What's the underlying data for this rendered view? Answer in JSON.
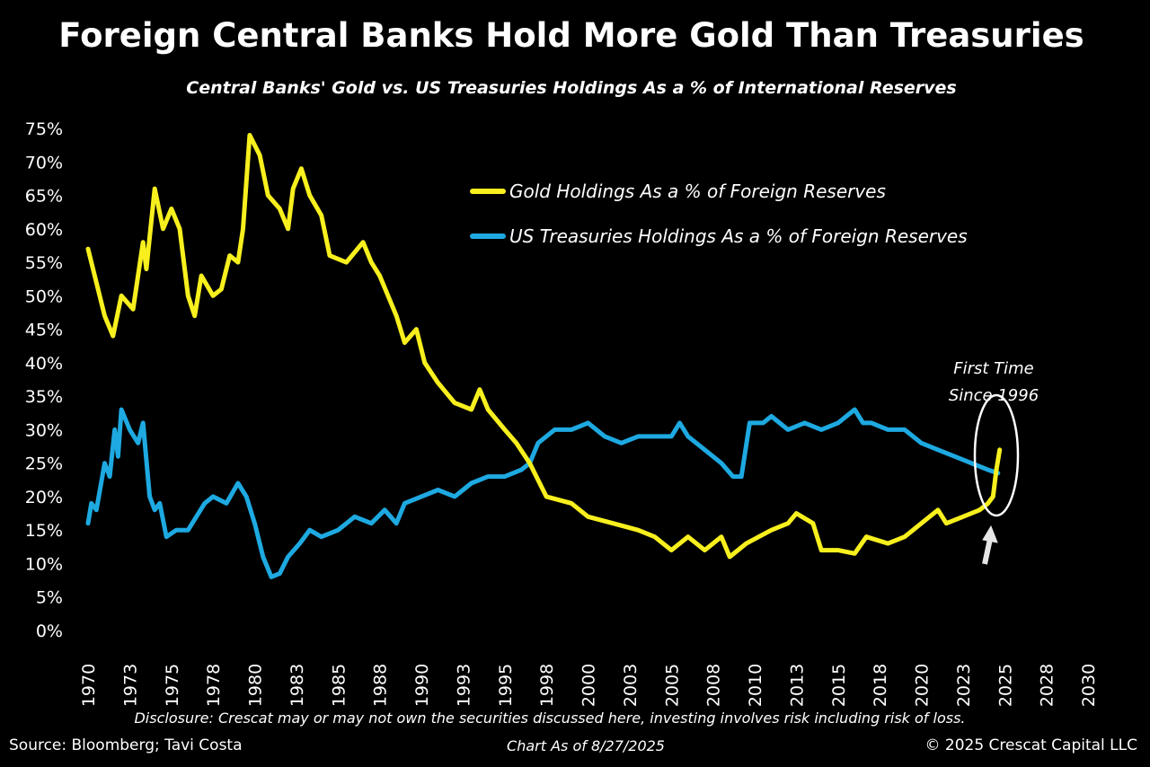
{
  "chart_data": {
    "type": "line",
    "title": "Foreign Central Banks Hold More Gold Than Treasuries",
    "subtitle": "Central Banks' Gold vs. US Treasuries Holdings As a % of International Reserves",
    "xlabel": "",
    "ylabel": "",
    "xlim": [
      1970,
      2030
    ],
    "ylim": [
      0,
      75
    ],
    "x_tick_labels": [
      "1970",
      "1973",
      "1975",
      "1978",
      "1980",
      "1983",
      "1985",
      "1988",
      "1990",
      "1993",
      "1995",
      "1998",
      "2000",
      "2003",
      "2005",
      "2008",
      "2010",
      "2013",
      "2015",
      "2018",
      "2020",
      "2023",
      "2025",
      "2028",
      "2030"
    ],
    "y_tick_labels": [
      "0%",
      "5%",
      "10%",
      "15%",
      "20%",
      "25%",
      "30%",
      "35%",
      "40%",
      "45%",
      "50%",
      "55%",
      "60%",
      "65%",
      "70%",
      "75%"
    ],
    "grid": false,
    "legend_placement": "top-right",
    "background": "#000000",
    "series": [
      {
        "name": "Gold Holdings As a % of Foreign Reserves",
        "color": "#f7f01e",
        "x": [
          1970,
          1971,
          1971.5,
          1972,
          1972.7,
          1973.3,
          1973.5,
          1974,
          1974.5,
          1975,
          1975.5,
          1976,
          1976.4,
          1976.8,
          1977.5,
          1978,
          1978.5,
          1979,
          1979.3,
          1979.7,
          1980.3,
          1980.8,
          1981.5,
          1982,
          1982.3,
          1982.8,
          1983.3,
          1984,
          1984.5,
          1985.5,
          1986.5,
          1987,
          1987.5,
          1988,
          1988.5,
          1989,
          1989.7,
          1990.2,
          1991,
          1992,
          1993,
          1993.5,
          1994,
          1995,
          1995.7,
          1996.5,
          1997.5,
          1999,
          2000,
          2001.5,
          2003,
          2004,
          2005,
          2006,
          2007,
          2008,
          2008.5,
          2009.5,
          2011,
          2012,
          2012.5,
          2013.5,
          2014,
          2015,
          2016,
          2016.7,
          2018,
          2019,
          2020,
          2021,
          2021.5,
          2022.5,
          2023.5,
          2024,
          2024.3,
          2024.5,
          2024.7
        ],
        "y": [
          57,
          47,
          44,
          50,
          48,
          58,
          54,
          66,
          60,
          63,
          60,
          50,
          47,
          53,
          50,
          51,
          56,
          55,
          60,
          74,
          71,
          65,
          63,
          60,
          66,
          69,
          65,
          62,
          56,
          55,
          58,
          55,
          53,
          50,
          47,
          43,
          45,
          40,
          37,
          34,
          33,
          36,
          33,
          30,
          28,
          25,
          20,
          19,
          17,
          16,
          15,
          14,
          12,
          14,
          12,
          14,
          11,
          13,
          15,
          16,
          17.5,
          16,
          12,
          12,
          11.5,
          14,
          13,
          14,
          16,
          18,
          16,
          17,
          18,
          19,
          20,
          24,
          27
        ]
      },
      {
        "name": "US Treasuries Holdings As a % of Foreign Reserves",
        "color": "#1ea9e1",
        "x": [
          1970,
          1970.2,
          1970.5,
          1971,
          1971.3,
          1971.6,
          1971.8,
          1972,
          1972.5,
          1973,
          1973.3,
          1973.7,
          1974,
          1974.3,
          1974.7,
          1975.3,
          1976,
          1977,
          1977.5,
          1978.3,
          1979,
          1979.5,
          1980,
          1980.5,
          1981,
          1981.5,
          1982,
          1982.7,
          1983.3,
          1984,
          1985,
          1986,
          1987,
          1987.8,
          1988.5,
          1989,
          1990,
          1991,
          1992,
          1993,
          1994,
          1995,
          1996,
          1996.5,
          1997,
          1998,
          1999,
          2000,
          2001,
          2002,
          2003,
          2004,
          2005,
          2005.5,
          2006,
          2007,
          2008,
          2008.7,
          2009.2,
          2009.7,
          2010.5,
          2011,
          2012,
          2013,
          2014,
          2015,
          2016,
          2016.5,
          2017,
          2018,
          2019,
          2020,
          2021,
          2022,
          2023,
          2024,
          2024.6
        ],
        "y": [
          16,
          19,
          18,
          25,
          23,
          30,
          26,
          33,
          30,
          28,
          31,
          20,
          18,
          19,
          14,
          15,
          15,
          19,
          20,
          19,
          22,
          20,
          16,
          11,
          8,
          8.5,
          11,
          13,
          15,
          14,
          15,
          17,
          16,
          18,
          16,
          19,
          20,
          21,
          20,
          22,
          23,
          23,
          24,
          25,
          28,
          30,
          30,
          31,
          29,
          28,
          29,
          29,
          29,
          31,
          29,
          27,
          25,
          23,
          23,
          31,
          31,
          32,
          30,
          31,
          30,
          31,
          33,
          31,
          31,
          30,
          30,
          28,
          27,
          26,
          25,
          24,
          23.5
        ]
      }
    ],
    "annotations": {
      "line1": "First Time",
      "line2": "Since 1996",
      "circle_color": "#ffffff",
      "arrow_color": "#e6e6e6"
    }
  },
  "footer": {
    "disclosure": "Disclosure: Crescat may or may not own the securities discussed here, investing involves risk including risk of loss.",
    "source": "Source: Bloomberg; Tavi Costa",
    "as_of": "Chart As of 8/27/2025",
    "copyright": "© 2025 Crescat Capital LLC"
  }
}
